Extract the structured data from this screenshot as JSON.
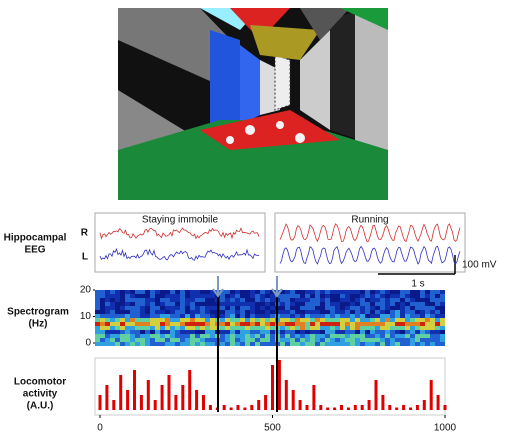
{
  "eeg": {
    "label": [
      "Hippocampal",
      "EEG"
    ],
    "channels": [
      "R",
      "L"
    ],
    "conditions": [
      "Staying immobile",
      "Running"
    ],
    "scale": {
      "amplitude": "100 mV",
      "time": "1 s"
    }
  },
  "spectrogram": {
    "label": [
      "Spectrogram",
      "(Hz)"
    ],
    "ylim": [
      0,
      20
    ],
    "yticks": [
      0,
      10,
      20
    ]
  },
  "locomotor": {
    "label": [
      "Locomotor",
      "activity",
      "(A.U.)"
    ],
    "xlim": [
      0,
      1000
    ],
    "xticks": [
      0,
      500,
      1000
    ],
    "color": "#e00000",
    "transitions": [
      342,
      513
    ],
    "x": [
      0,
      20,
      40,
      60,
      80,
      100,
      120,
      140,
      160,
      180,
      200,
      220,
      240,
      260,
      280,
      300,
      320,
      340,
      360,
      380,
      400,
      420,
      440,
      460,
      480,
      500,
      520,
      540,
      560,
      580,
      600,
      620,
      640,
      660,
      680,
      700,
      720,
      740,
      760,
      780,
      800,
      820,
      840,
      860,
      880,
      900,
      920,
      940,
      960,
      980,
      1000
    ],
    "values": [
      0.3,
      0.5,
      0.2,
      0.7,
      0.4,
      0.8,
      0.3,
      0.6,
      0.2,
      0.5,
      0.7,
      0.3,
      0.5,
      0.8,
      0.4,
      0.3,
      0.1,
      0.05,
      0.1,
      0.05,
      0.1,
      0.05,
      0.1,
      0.2,
      0.3,
      0.9,
      1.0,
      0.6,
      0.4,
      0.2,
      0.1,
      0.5,
      0.1,
      0.05,
      0.05,
      0.1,
      0.05,
      0.1,
      0.1,
      0.2,
      0.6,
      0.3,
      0.1,
      0.05,
      0.1,
      0.05,
      0.1,
      0.2,
      0.6,
      0.3,
      0.1
    ]
  }
}
